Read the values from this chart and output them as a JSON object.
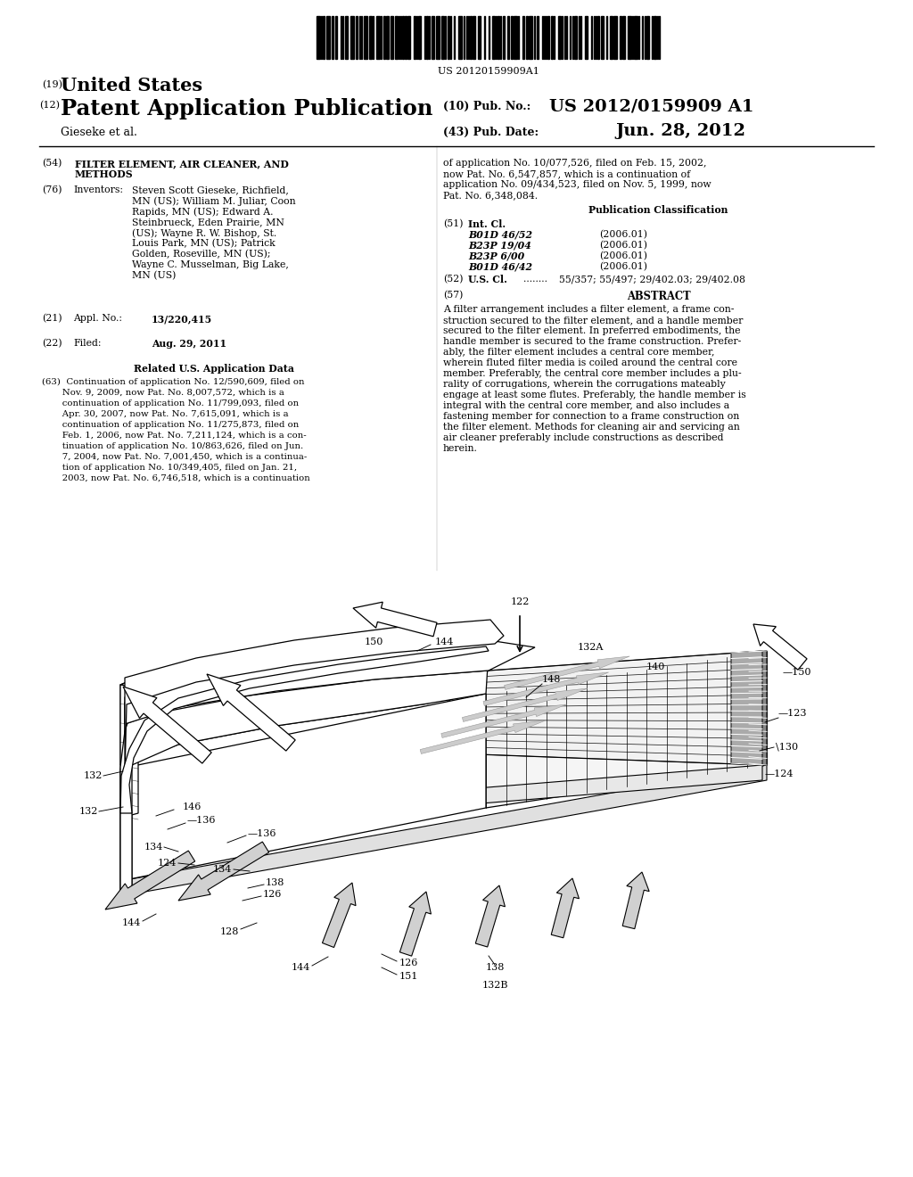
{
  "background_color": "#ffffff",
  "barcode_text": "US 20120159909A1",
  "header": {
    "country_num": "(19)",
    "country": "United States",
    "type_num": "(12)",
    "type": "Patent Application Publication",
    "pub_num_label": "(10) Pub. No.:",
    "pub_num": "US 2012/0159909 A1",
    "applicant": "Gieseke et al.",
    "pub_date_label_num": "(43)",
    "pub_date_label": "Pub. Date:",
    "pub_date": "Jun. 28, 2012"
  },
  "left_col": {
    "title_num": "(54)",
    "title_line1": "FILTER ELEMENT, AIR CLEANER, AND",
    "title_line2": "METHODS",
    "inventors_num": "(76)",
    "inventors_label": "Inventors:",
    "inventors_lines": [
      "Steven Scott Gieseke, Richfield,",
      "MN (US); William M. Juliar, Coon",
      "Rapids, MN (US); Edward A.",
      "Steinbrueck, Eden Prairie, MN",
      "(US); Wayne R. W. Bishop, St.",
      "Louis Park, MN (US); Patrick",
      "Golden, Roseville, MN (US);",
      "Wayne C. Musselman, Big Lake,",
      "MN (US)"
    ],
    "appl_num_label_num": "(21)",
    "appl_num_label": "Appl. No.:",
    "appl_num": "13/220,415",
    "filed_num": "(22)",
    "filed_label": "Filed:",
    "filed_date": "Aug. 29, 2011",
    "related_title": "Related U.S. Application Data",
    "related_lines": [
      "(63)  Continuation of application No. 12/590,609, filed on",
      "       Nov. 9, 2009, now Pat. No. 8,007,572, which is a",
      "       continuation of application No. 11/799,093, filed on",
      "       Apr. 30, 2007, now Pat. No. 7,615,091, which is a",
      "       continuation of application No. 11/275,873, filed on",
      "       Feb. 1, 2006, now Pat. No. 7,211,124, which is a con-",
      "       tinuation of application No. 10/863,626, filed on Jun.",
      "       7, 2004, now Pat. No. 7,001,450, which is a continua-",
      "       tion of application No. 10/349,405, filed on Jan. 21,",
      "       2003, now Pat. No. 6,746,518, which is a continuation"
    ]
  },
  "right_col": {
    "continuation_lines": [
      "of application No. 10/077,526, filed on Feb. 15, 2002,",
      "now Pat. No. 6,547,857, which is a continuation of",
      "application No. 09/434,523, filed on Nov. 5, 1999, now",
      "Pat. No. 6,348,084."
    ],
    "pub_class_title": "Publication Classification",
    "int_cl_num": "(51)",
    "int_cl_label": "Int. Cl.",
    "int_cl_entries": [
      [
        "B01D 46/52",
        "(2006.01)"
      ],
      [
        "B23P 19/04",
        "(2006.01)"
      ],
      [
        "B23P 6/00",
        "(2006.01)"
      ],
      [
        "B01D 46/42",
        "(2006.01)"
      ]
    ],
    "us_cl_num": "(52)",
    "us_cl_label": "U.S. Cl.",
    "us_cl_dots": "........",
    "us_cl_text": "55/357; 55/497; 29/402.03; 29/402.08",
    "abstract_num": "(57)",
    "abstract_title": "ABSTRACT",
    "abstract_lines": [
      "A filter arrangement includes a filter element, a frame con-",
      "struction secured to the filter element, and a handle member",
      "secured to the filter element. In preferred embodiments, the",
      "handle member is secured to the frame construction. Prefer-",
      "ably, the filter element includes a central core member,",
      "wherein fluted filter media is coiled around the central core",
      "member. Preferably, the central core member includes a plu-",
      "rality of corrugations, wherein the corrugations mateably",
      "engage at least some flutes. Preferably, the handle member is",
      "integral with the central core member, and also includes a",
      "fastening member for connection to a frame construction on",
      "the filter element. Methods for cleaning air and servicing an",
      "air cleaner preferably include constructions as described",
      "herein."
    ]
  }
}
